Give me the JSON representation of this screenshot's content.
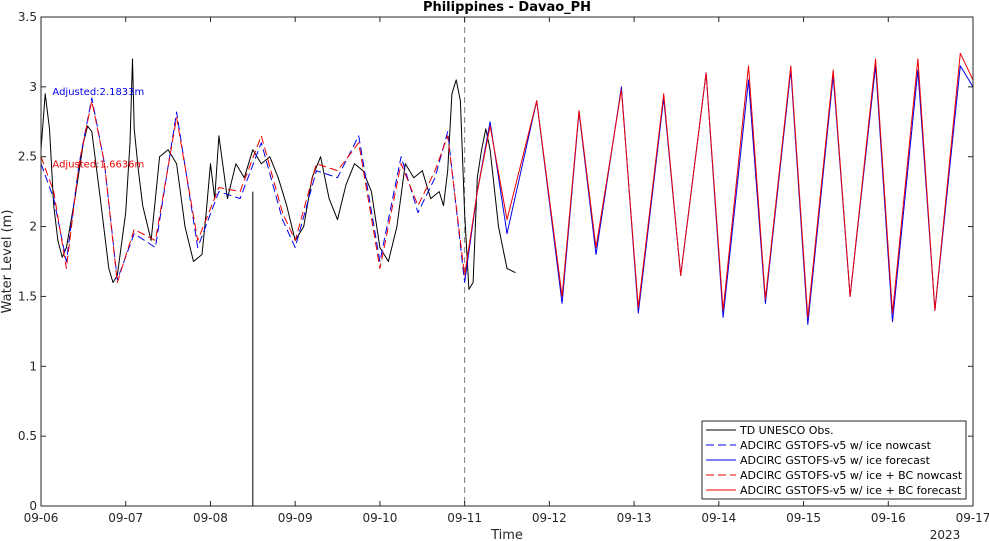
{
  "chart_data": {
    "type": "line",
    "title": "Philippines - Davao_PH",
    "xlabel": "Time",
    "ylabel": "Water Level (m)",
    "x_year_label": "2023",
    "xlim": [
      0,
      11
    ],
    "ylim": [
      0,
      3.5
    ],
    "x_ticks": [
      {
        "x": 0,
        "label": "09-06"
      },
      {
        "x": 1,
        "label": "09-07"
      },
      {
        "x": 2,
        "label": "09-08"
      },
      {
        "x": 3,
        "label": "09-09"
      },
      {
        "x": 4,
        "label": "09-10"
      },
      {
        "x": 5,
        "label": "09-11"
      },
      {
        "x": 6,
        "label": "09-12"
      },
      {
        "x": 7,
        "label": "09-13"
      },
      {
        "x": 8,
        "label": "09-14"
      },
      {
        "x": 9,
        "label": "09-15"
      },
      {
        "x": 10,
        "label": "09-16"
      },
      {
        "x": 11,
        "label": "09-17"
      }
    ],
    "y_ticks": [
      {
        "y": 0,
        "label": "0"
      },
      {
        "y": 0.5,
        "label": "0.5"
      },
      {
        "y": 1,
        "label": "1"
      },
      {
        "y": 1.5,
        "label": "1.5"
      },
      {
        "y": 2,
        "label": "2"
      },
      {
        "y": 2.5,
        "label": "2.5"
      },
      {
        "y": 3,
        "label": "3"
      },
      {
        "y": 3.5,
        "label": "3.5"
      }
    ],
    "grid": false,
    "nowcast_forecast_divider_x": 5,
    "legend_position": "bottom-right",
    "annotations": [
      {
        "text": "Adjusted:2.1833m",
        "x": 0.3,
        "y": 2.97,
        "color": "#0000ee"
      },
      {
        "text": "Adjusted:1.6636m",
        "x": 0.3,
        "y": 2.45,
        "color": "#ee0000"
      }
    ],
    "series": [
      {
        "name": "TD UNESCO Obs.",
        "color": "#000000",
        "dash": "solid",
        "x": [
          0,
          0.05,
          0.1,
          0.15,
          0.2,
          0.25,
          0.3,
          0.4,
          0.5,
          0.55,
          0.6,
          0.7,
          0.8,
          0.85,
          0.9,
          1.0,
          1.05,
          1.08,
          1.1,
          1.15,
          1.2,
          1.3,
          1.35,
          1.4,
          1.5,
          1.6,
          1.7,
          1.8,
          1.9,
          1.95,
          2.0,
          2.05,
          2.1,
          2.2,
          2.3,
          2.4,
          2.5,
          2.6,
          2.7,
          2.8,
          2.9,
          3.0,
          3.1,
          3.2,
          3.3,
          3.4,
          3.5,
          3.6,
          3.7,
          3.8,
          3.9,
          4.0,
          4.1,
          4.2,
          4.3,
          4.4,
          4.5,
          4.6,
          4.7,
          4.75,
          4.8,
          4.85,
          4.9,
          4.95,
          5.0,
          5.05,
          5.1,
          5.15,
          5.2,
          5.25,
          5.3,
          5.4,
          5.5,
          5.6
        ],
        "y": [
          2.55,
          2.95,
          2.7,
          2.15,
          1.9,
          1.78,
          1.85,
          2.2,
          2.6,
          2.72,
          2.68,
          2.2,
          1.7,
          1.6,
          1.65,
          2.1,
          2.6,
          3.2,
          2.7,
          2.4,
          2.15,
          1.9,
          2.2,
          2.5,
          2.55,
          2.45,
          2.0,
          1.75,
          1.8,
          2.1,
          2.45,
          2.2,
          2.65,
          2.2,
          2.45,
          2.35,
          2.55,
          2.45,
          2.5,
          2.35,
          2.15,
          1.9,
          2.0,
          2.35,
          2.5,
          2.2,
          2.05,
          2.3,
          2.45,
          2.4,
          2.25,
          1.85,
          1.75,
          2.0,
          2.45,
          2.35,
          2.4,
          2.2,
          2.25,
          2.15,
          2.4,
          2.95,
          3.05,
          2.9,
          2.1,
          1.55,
          1.6,
          2.35,
          2.55,
          2.7,
          2.55,
          2.0,
          1.7,
          1.67
        ]
      },
      {
        "name": "ADCIRC GSTOFS-v5 w/ ice nowcast",
        "color": "#0000ee",
        "dash": "dashed",
        "x": [
          0,
          0.15,
          0.3,
          0.45,
          0.6,
          0.75,
          0.9,
          1.1,
          1.35,
          1.6,
          1.85,
          2.1,
          2.35,
          2.6,
          2.85,
          3.0,
          3.25,
          3.5,
          3.75,
          4.0,
          4.25,
          4.45,
          4.65,
          4.8,
          5.0
        ],
        "y": [
          2.45,
          2.2,
          1.75,
          2.45,
          2.92,
          2.45,
          1.62,
          1.95,
          1.85,
          2.82,
          1.85,
          2.25,
          2.2,
          2.6,
          2.05,
          1.85,
          2.4,
          2.35,
          2.65,
          1.75,
          2.5,
          2.1,
          2.35,
          2.68,
          1.6
        ]
      },
      {
        "name": "ADCIRC GSTOFS-v5 w/ ice forecast",
        "color": "#0000ee",
        "dash": "solid",
        "x": [
          5.0,
          5.15,
          5.3,
          5.5,
          5.85,
          6.15,
          6.35,
          6.55,
          6.85,
          7.05,
          7.35,
          7.55,
          7.85,
          8.05,
          8.35,
          8.55,
          8.85,
          9.05,
          9.35,
          9.55,
          9.85,
          10.05,
          10.35,
          10.55,
          10.85,
          11.0
        ],
        "y": [
          1.6,
          2.25,
          2.75,
          1.95,
          2.9,
          1.45,
          2.82,
          1.8,
          3.0,
          1.38,
          2.92,
          1.65,
          3.1,
          1.35,
          3.05,
          1.45,
          3.12,
          1.3,
          3.08,
          1.5,
          3.15,
          1.32,
          3.12,
          1.4,
          3.15,
          3.0
        ]
      },
      {
        "name": "ADCIRC GSTOFS-v5 w/ ice + BC nowcast",
        "color": "#ee0000",
        "dash": "dashed",
        "x": [
          0,
          0.15,
          0.3,
          0.45,
          0.6,
          0.75,
          0.9,
          1.1,
          1.35,
          1.6,
          1.85,
          2.1,
          2.35,
          2.6,
          2.85,
          3.0,
          3.25,
          3.5,
          3.75,
          4.0,
          4.25,
          4.45,
          4.65,
          4.8,
          5.0
        ],
        "y": [
          2.5,
          2.25,
          1.7,
          2.45,
          2.9,
          2.45,
          1.6,
          1.98,
          1.9,
          2.78,
          1.9,
          2.28,
          2.25,
          2.65,
          2.1,
          1.9,
          2.45,
          2.4,
          2.6,
          1.7,
          2.45,
          2.15,
          2.4,
          2.65,
          1.65
        ]
      },
      {
        "name": "ADCIRC GSTOFS-v5 w/ ice + BC forecast",
        "color": "#ee0000",
        "dash": "solid",
        "x": [
          5.0,
          5.15,
          5.3,
          5.5,
          5.85,
          6.15,
          6.35,
          6.55,
          6.85,
          7.05,
          7.35,
          7.55,
          7.85,
          8.05,
          8.35,
          8.55,
          8.85,
          9.05,
          9.35,
          9.55,
          9.85,
          10.05,
          10.35,
          10.55,
          10.85,
          11.0
        ],
        "y": [
          1.65,
          2.25,
          2.72,
          2.05,
          2.9,
          1.5,
          2.83,
          1.85,
          2.98,
          1.42,
          2.95,
          1.65,
          3.1,
          1.4,
          3.15,
          1.48,
          3.15,
          1.35,
          3.12,
          1.5,
          3.2,
          1.38,
          3.2,
          1.4,
          3.24,
          3.05
        ]
      }
    ]
  }
}
